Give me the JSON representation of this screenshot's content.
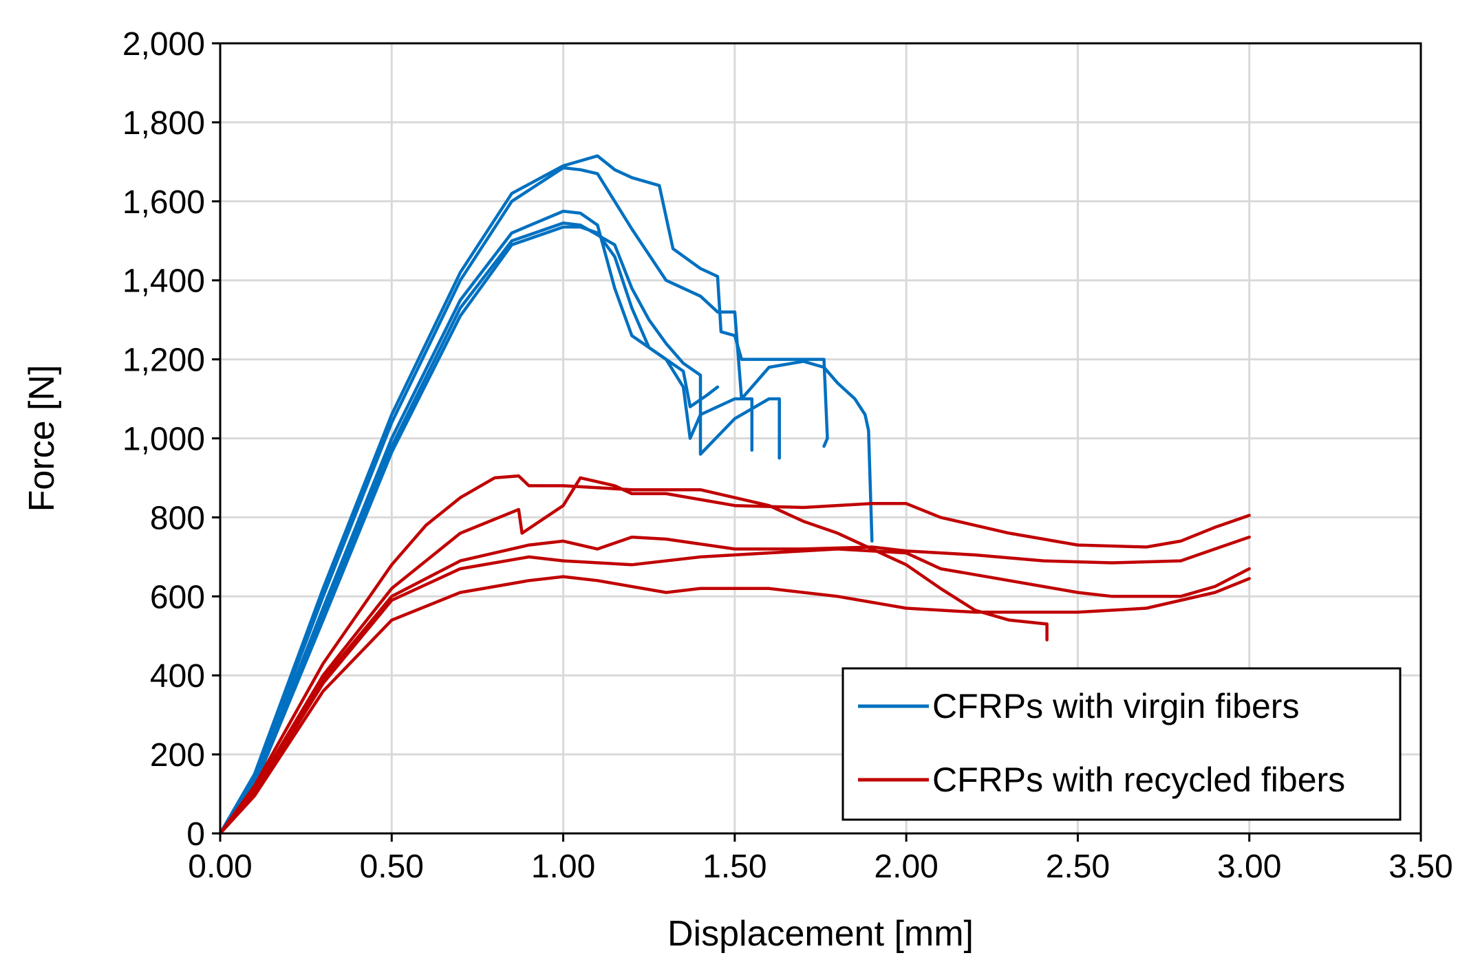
{
  "chart_data": {
    "type": "line",
    "xlabel": "Displacement [mm]",
    "ylabel": "Force [N]",
    "xlim": [
      0,
      3.5
    ],
    "ylim": [
      0,
      2000
    ],
    "x_ticks": [
      "0.00",
      "0.50",
      "1.00",
      "1.50",
      "2.00",
      "2.50",
      "3.00",
      "3.50"
    ],
    "y_ticks": [
      "0",
      "200",
      "400",
      "600",
      "800",
      "1,000",
      "1,200",
      "1,400",
      "1,600",
      "1,800",
      "2,000"
    ],
    "grid": true,
    "legend_position": "bottom-right",
    "colors": {
      "virgin": "#0070C0",
      "recycled": "#C00000",
      "grid": "#d9d9d9",
      "axis": "#000000"
    },
    "legend": [
      {
        "label": "CFRPs with virgin fibers",
        "color": "#0070C0"
      },
      {
        "label": "CFRPs with recycled fibers",
        "color": "#C00000"
      }
    ],
    "series": [
      {
        "group": "virgin",
        "color": "#0070C0",
        "points": [
          [
            0,
            0
          ],
          [
            0.1,
            150
          ],
          [
            0.3,
            620
          ],
          [
            0.5,
            1060
          ],
          [
            0.7,
            1420
          ],
          [
            0.85,
            1620
          ],
          [
            1.0,
            1690
          ],
          [
            1.1,
            1715
          ],
          [
            1.15,
            1680
          ],
          [
            1.2,
            1660
          ],
          [
            1.28,
            1640
          ],
          [
            1.32,
            1480
          ],
          [
            1.4,
            1430
          ],
          [
            1.45,
            1410
          ],
          [
            1.46,
            1270
          ],
          [
            1.5,
            1260
          ],
          [
            1.52,
            1200
          ],
          [
            1.62,
            1200
          ],
          [
            1.7,
            1200
          ],
          [
            1.76,
            1200
          ],
          [
            1.77,
            1000
          ],
          [
            1.76,
            980
          ]
        ]
      },
      {
        "group": "virgin",
        "color": "#0070C0",
        "points": [
          [
            0,
            0
          ],
          [
            0.1,
            140
          ],
          [
            0.3,
            600
          ],
          [
            0.5,
            1040
          ],
          [
            0.7,
            1400
          ],
          [
            0.85,
            1600
          ],
          [
            1.0,
            1685
          ],
          [
            1.05,
            1680
          ],
          [
            1.1,
            1670
          ],
          [
            1.2,
            1530
          ],
          [
            1.3,
            1400
          ],
          [
            1.4,
            1360
          ],
          [
            1.45,
            1320
          ],
          [
            1.5,
            1320
          ],
          [
            1.52,
            1100
          ],
          [
            1.6,
            1180
          ],
          [
            1.7,
            1195
          ],
          [
            1.76,
            1180
          ],
          [
            1.8,
            1140
          ],
          [
            1.85,
            1100
          ],
          [
            1.88,
            1060
          ],
          [
            1.89,
            1020
          ],
          [
            1.9,
            740
          ]
        ]
      },
      {
        "group": "virgin",
        "color": "#0070C0",
        "points": [
          [
            0,
            0
          ],
          [
            0.1,
            130
          ],
          [
            0.3,
            570
          ],
          [
            0.5,
            1000
          ],
          [
            0.7,
            1350
          ],
          [
            0.85,
            1520
          ],
          [
            1.0,
            1575
          ],
          [
            1.05,
            1570
          ],
          [
            1.1,
            1540
          ],
          [
            1.15,
            1380
          ],
          [
            1.2,
            1260
          ],
          [
            1.3,
            1200
          ],
          [
            1.35,
            1130
          ],
          [
            1.37,
            1000
          ],
          [
            1.4,
            1060
          ],
          [
            1.5,
            1100
          ],
          [
            1.55,
            1100
          ],
          [
            1.55,
            970
          ]
        ]
      },
      {
        "group": "virgin",
        "color": "#0070C0",
        "points": [
          [
            0,
            0
          ],
          [
            0.1,
            125
          ],
          [
            0.3,
            555
          ],
          [
            0.5,
            980
          ],
          [
            0.7,
            1330
          ],
          [
            0.85,
            1500
          ],
          [
            1.0,
            1545
          ],
          [
            1.05,
            1540
          ],
          [
            1.15,
            1490
          ],
          [
            1.2,
            1380
          ],
          [
            1.25,
            1300
          ],
          [
            1.3,
            1240
          ],
          [
            1.35,
            1190
          ],
          [
            1.4,
            1160
          ],
          [
            1.4,
            960
          ],
          [
            1.5,
            1050
          ],
          [
            1.6,
            1100
          ],
          [
            1.63,
            1100
          ],
          [
            1.63,
            950
          ]
        ]
      },
      {
        "group": "virgin",
        "color": "#0070C0",
        "points": [
          [
            0,
            0
          ],
          [
            0.1,
            120
          ],
          [
            0.3,
            540
          ],
          [
            0.5,
            965
          ],
          [
            0.7,
            1310
          ],
          [
            0.85,
            1490
          ],
          [
            1.0,
            1535
          ],
          [
            1.05,
            1535
          ],
          [
            1.1,
            1520
          ],
          [
            1.15,
            1460
          ],
          [
            1.2,
            1330
          ],
          [
            1.25,
            1230
          ],
          [
            1.3,
            1200
          ],
          [
            1.35,
            1170
          ],
          [
            1.37,
            1080
          ],
          [
            1.42,
            1110
          ],
          [
            1.45,
            1130
          ]
        ]
      },
      {
        "group": "recycled",
        "color": "#C00000",
        "points": [
          [
            0,
            0
          ],
          [
            0.1,
            120
          ],
          [
            0.3,
            430
          ],
          [
            0.5,
            680
          ],
          [
            0.6,
            780
          ],
          [
            0.7,
            850
          ],
          [
            0.8,
            900
          ],
          [
            0.87,
            905
          ],
          [
            0.9,
            880
          ],
          [
            1.0,
            880
          ],
          [
            1.2,
            870
          ],
          [
            1.4,
            870
          ],
          [
            1.5,
            850
          ],
          [
            1.6,
            830
          ],
          [
            1.7,
            790
          ],
          [
            1.8,
            760
          ],
          [
            1.9,
            720
          ],
          [
            2.0,
            680
          ],
          [
            2.1,
            620
          ],
          [
            2.2,
            565
          ],
          [
            2.3,
            540
          ],
          [
            2.41,
            530
          ],
          [
            2.41,
            490
          ]
        ]
      },
      {
        "group": "recycled",
        "color": "#C00000",
        "points": [
          [
            0,
            0
          ],
          [
            0.1,
            110
          ],
          [
            0.3,
            400
          ],
          [
            0.5,
            620
          ],
          [
            0.7,
            760
          ],
          [
            0.87,
            820
          ],
          [
            0.88,
            760
          ],
          [
            1.0,
            830
          ],
          [
            1.05,
            900
          ],
          [
            1.15,
            880
          ],
          [
            1.2,
            860
          ],
          [
            1.3,
            860
          ],
          [
            1.5,
            830
          ],
          [
            1.7,
            825
          ],
          [
            1.9,
            835
          ],
          [
            2.0,
            835
          ],
          [
            2.1,
            800
          ],
          [
            2.3,
            760
          ],
          [
            2.5,
            730
          ],
          [
            2.7,
            725
          ],
          [
            2.8,
            740
          ],
          [
            2.9,
            775
          ],
          [
            3.0,
            805
          ]
        ]
      },
      {
        "group": "recycled",
        "color": "#C00000",
        "points": [
          [
            0,
            0
          ],
          [
            0.1,
            110
          ],
          [
            0.3,
            390
          ],
          [
            0.5,
            600
          ],
          [
            0.7,
            690
          ],
          [
            0.9,
            730
          ],
          [
            1.0,
            740
          ],
          [
            1.1,
            720
          ],
          [
            1.2,
            750
          ],
          [
            1.3,
            745
          ],
          [
            1.5,
            720
          ],
          [
            1.7,
            720
          ],
          [
            1.9,
            725
          ],
          [
            2.0,
            715
          ],
          [
            2.2,
            705
          ],
          [
            2.4,
            690
          ],
          [
            2.6,
            685
          ],
          [
            2.8,
            690
          ],
          [
            3.0,
            750
          ]
        ]
      },
      {
        "group": "recycled",
        "color": "#C00000",
        "points": [
          [
            0,
            0
          ],
          [
            0.1,
            100
          ],
          [
            0.3,
            380
          ],
          [
            0.5,
            590
          ],
          [
            0.7,
            670
          ],
          [
            0.9,
            700
          ],
          [
            1.0,
            690
          ],
          [
            1.2,
            680
          ],
          [
            1.4,
            700
          ],
          [
            1.6,
            710
          ],
          [
            1.8,
            720
          ],
          [
            2.0,
            710
          ],
          [
            2.1,
            670
          ],
          [
            2.3,
            640
          ],
          [
            2.5,
            610
          ],
          [
            2.6,
            600
          ],
          [
            2.8,
            600
          ],
          [
            2.9,
            625
          ],
          [
            3.0,
            670
          ]
        ]
      },
      {
        "group": "recycled",
        "color": "#C00000",
        "points": [
          [
            0,
            0
          ],
          [
            0.1,
            95
          ],
          [
            0.3,
            360
          ],
          [
            0.5,
            540
          ],
          [
            0.7,
            610
          ],
          [
            0.9,
            640
          ],
          [
            1.0,
            650
          ],
          [
            1.1,
            640
          ],
          [
            1.3,
            610
          ],
          [
            1.4,
            620
          ],
          [
            1.6,
            620
          ],
          [
            1.8,
            600
          ],
          [
            2.0,
            570
          ],
          [
            2.2,
            560
          ],
          [
            2.3,
            560
          ],
          [
            2.5,
            560
          ],
          [
            2.7,
            570
          ],
          [
            2.9,
            610
          ],
          [
            3.0,
            645
          ]
        ]
      }
    ]
  }
}
